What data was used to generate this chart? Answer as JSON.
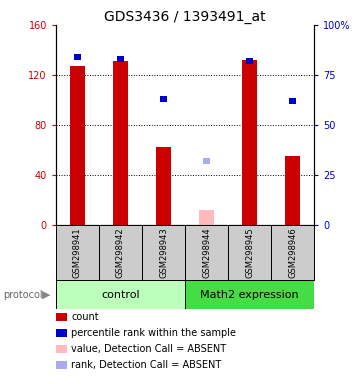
{
  "title": "GDS3436 / 1393491_at",
  "samples": [
    "GSM298941",
    "GSM298942",
    "GSM298943",
    "GSM298944",
    "GSM298945",
    "GSM298946"
  ],
  "count_values": [
    127,
    131,
    62,
    null,
    132,
    55
  ],
  "percentile_values": [
    84,
    83,
    63,
    null,
    82,
    62
  ],
  "absent_count": [
    null,
    null,
    null,
    12,
    null,
    null
  ],
  "absent_rank": [
    null,
    null,
    null,
    32,
    null,
    null
  ],
  "left_ylim": [
    0,
    160
  ],
  "right_ylim": [
    0,
    100
  ],
  "left_yticks": [
    0,
    40,
    80,
    120,
    160
  ],
  "right_yticks": [
    0,
    25,
    50,
    75,
    100
  ],
  "right_yticklabels": [
    "0",
    "25",
    "50",
    "75",
    "100%"
  ],
  "bar_color_present": "#cc0000",
  "bar_color_absent": "#ffbbbb",
  "rank_color_present": "#0000cc",
  "rank_color_absent": "#aaaaee",
  "group1_label": "control",
  "group2_label": "Math2 expression",
  "group1_indices": [
    0,
    1,
    2
  ],
  "group2_indices": [
    3,
    4,
    5
  ],
  "group1_bg": "#bbffbb",
  "group2_bg": "#44dd44",
  "sample_box_bg": "#cccccc",
  "protocol_label": "protocol",
  "legend_items": [
    {
      "color": "#cc0000",
      "label": "count"
    },
    {
      "color": "#0000cc",
      "label": "percentile rank within the sample"
    },
    {
      "color": "#ffbbbb",
      "label": "value, Detection Call = ABSENT"
    },
    {
      "color": "#aaaaee",
      "label": "rank, Detection Call = ABSENT"
    }
  ],
  "title_fontsize": 10,
  "tick_fontsize": 7,
  "sample_fontsize": 6,
  "legend_fontsize": 7,
  "group_fontsize": 8,
  "bar_width": 0.35
}
